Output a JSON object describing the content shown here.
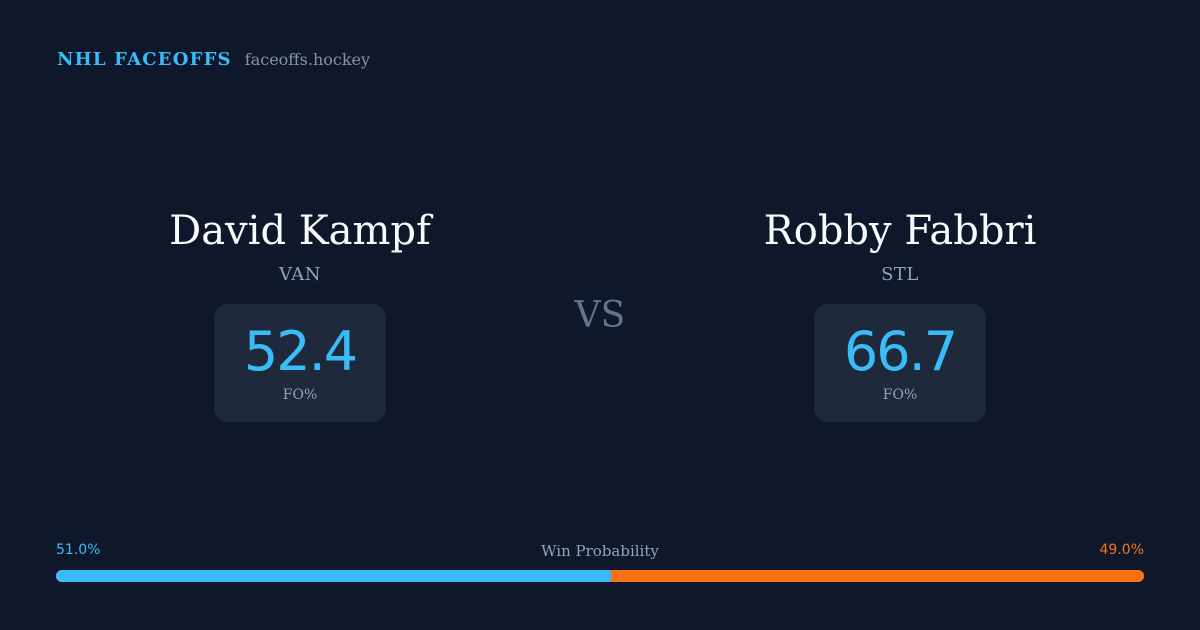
{
  "header": {
    "brand": "NHL FACEOFFS",
    "domain": "faceoffs.hockey"
  },
  "players": [
    {
      "name": "David Kampf",
      "team": "VAN",
      "stat_value": "52.4",
      "stat_label": "FO%"
    },
    {
      "name": "Robby Fabbri",
      "team": "STL",
      "stat_value": "66.7",
      "stat_label": "FO%"
    }
  ],
  "vs_label": "VS",
  "win_probability": {
    "title": "Win Probability",
    "left_label": "51.0%",
    "right_label": "49.0%",
    "left_value": 51.0,
    "right_value": 49.0
  },
  "colors": {
    "background": "#0f172a",
    "card": "#1e293b",
    "accent": "#38bdf8",
    "opponent": "#f97316",
    "muted": "#94a3b8"
  }
}
